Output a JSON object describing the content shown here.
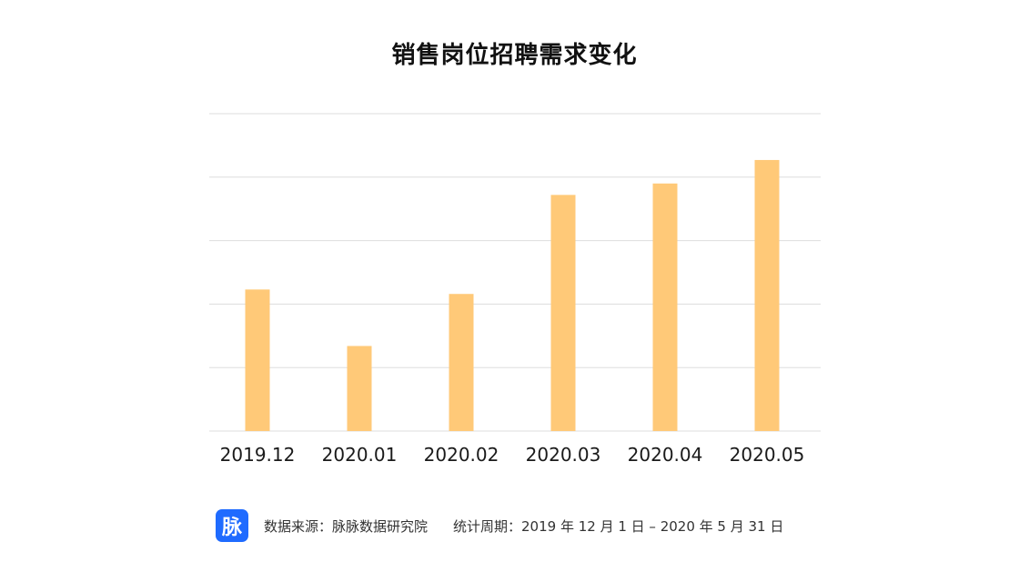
{
  "title": "销售岗位招聘需求变化",
  "chart_data": {
    "type": "bar",
    "title": "销售岗位招聘需求变化",
    "categories": [
      "2019.12",
      "2020.01",
      "2020.02",
      "2020.03",
      "2020.04",
      "2020.05"
    ],
    "values": [
      2.23,
      1.34,
      2.16,
      3.72,
      3.9,
      4.27
    ],
    "ylim": [
      0,
      5
    ],
    "yticks": [
      0,
      1,
      2,
      3,
      4,
      5
    ],
    "ytick_labels_shown": false,
    "grid": true,
    "xlabel": "",
    "ylabel": "",
    "bar_color": "#ffc978",
    "grid_color": "#dddddd"
  },
  "footer": {
    "logo_text": "脉",
    "source": "数据来源：脉脉数据研究院",
    "period": "统计周期：2019 年 12 月 1 日 – 2020 年 5 月 31 日",
    "logo_color": "#1f6bff"
  }
}
